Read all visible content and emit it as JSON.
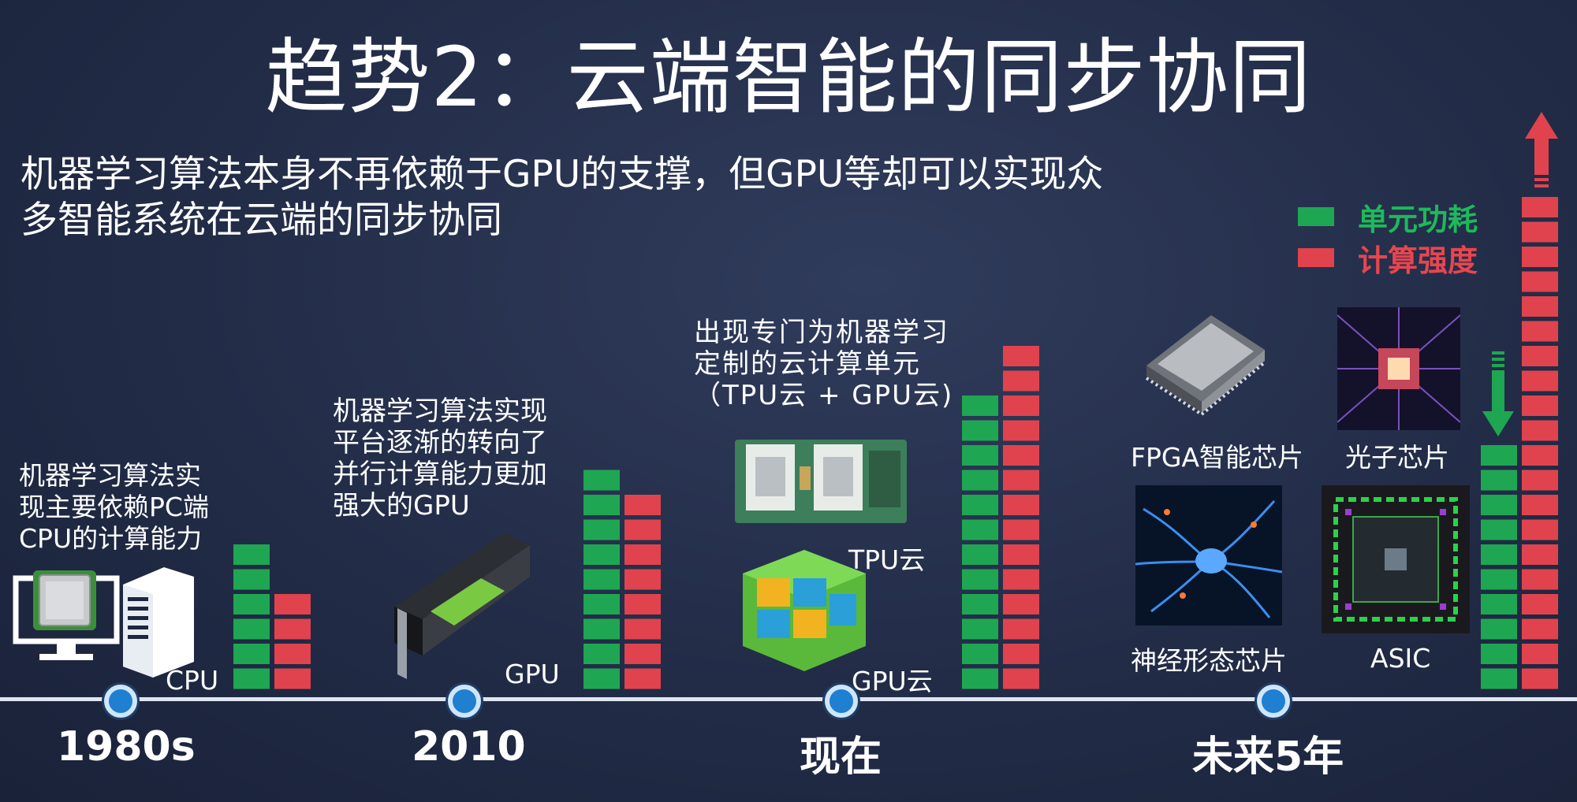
{
  "title": "趋势2：云端智能的同步协同",
  "subtitle_line1": "机器学习算法本身不再依赖于GPU的支撑，但GPU等却可以实现众",
  "subtitle_line2": "多智能系统在云端的同步协同",
  "legend": {
    "power": "单元功耗",
    "compute": "计算强度"
  },
  "colors": {
    "green": "#1fa652",
    "red": "#e0434d",
    "accent_blue": "#1f7fd0"
  },
  "eras": [
    {
      "label": "1980s",
      "caption": [
        "机器学习算法实",
        "现主要依赖PC端",
        "CPU的计算能力"
      ],
      "device_label": "CPU",
      "green": 6,
      "red": 4
    },
    {
      "label": "2010",
      "caption": [
        "机器学习算法实现",
        "平台逐渐的转向了",
        "并行计算能力更加",
        "强大的GPU"
      ],
      "device_label": "GPU",
      "green": 9,
      "red": 8
    },
    {
      "label": "现在",
      "caption": [
        "出现专门为机器学习",
        "定制的云计算单元",
        "（TPU云 + GPU云)"
      ],
      "device_label_1": "TPU云",
      "device_label_2": "GPU云",
      "green": 12,
      "red": 14
    },
    {
      "label": "未来5年",
      "chips": [
        "FPGA智能芯片",
        "光子芯片",
        "神经形态芯片",
        "ASIC"
      ],
      "green": 10,
      "red": 20
    }
  ],
  "icons": [
    "monitor-icon",
    "cpu-chip-icon",
    "tower-pc-icon",
    "gpu-card-icon",
    "tpu-board-icon",
    "gpu-cloud-cube-icon",
    "fpga-chip-icon",
    "photonic-chip-icon",
    "neuromorphic-icon",
    "asic-die-icon",
    "arrow-up-icon",
    "arrow-down-icon"
  ]
}
